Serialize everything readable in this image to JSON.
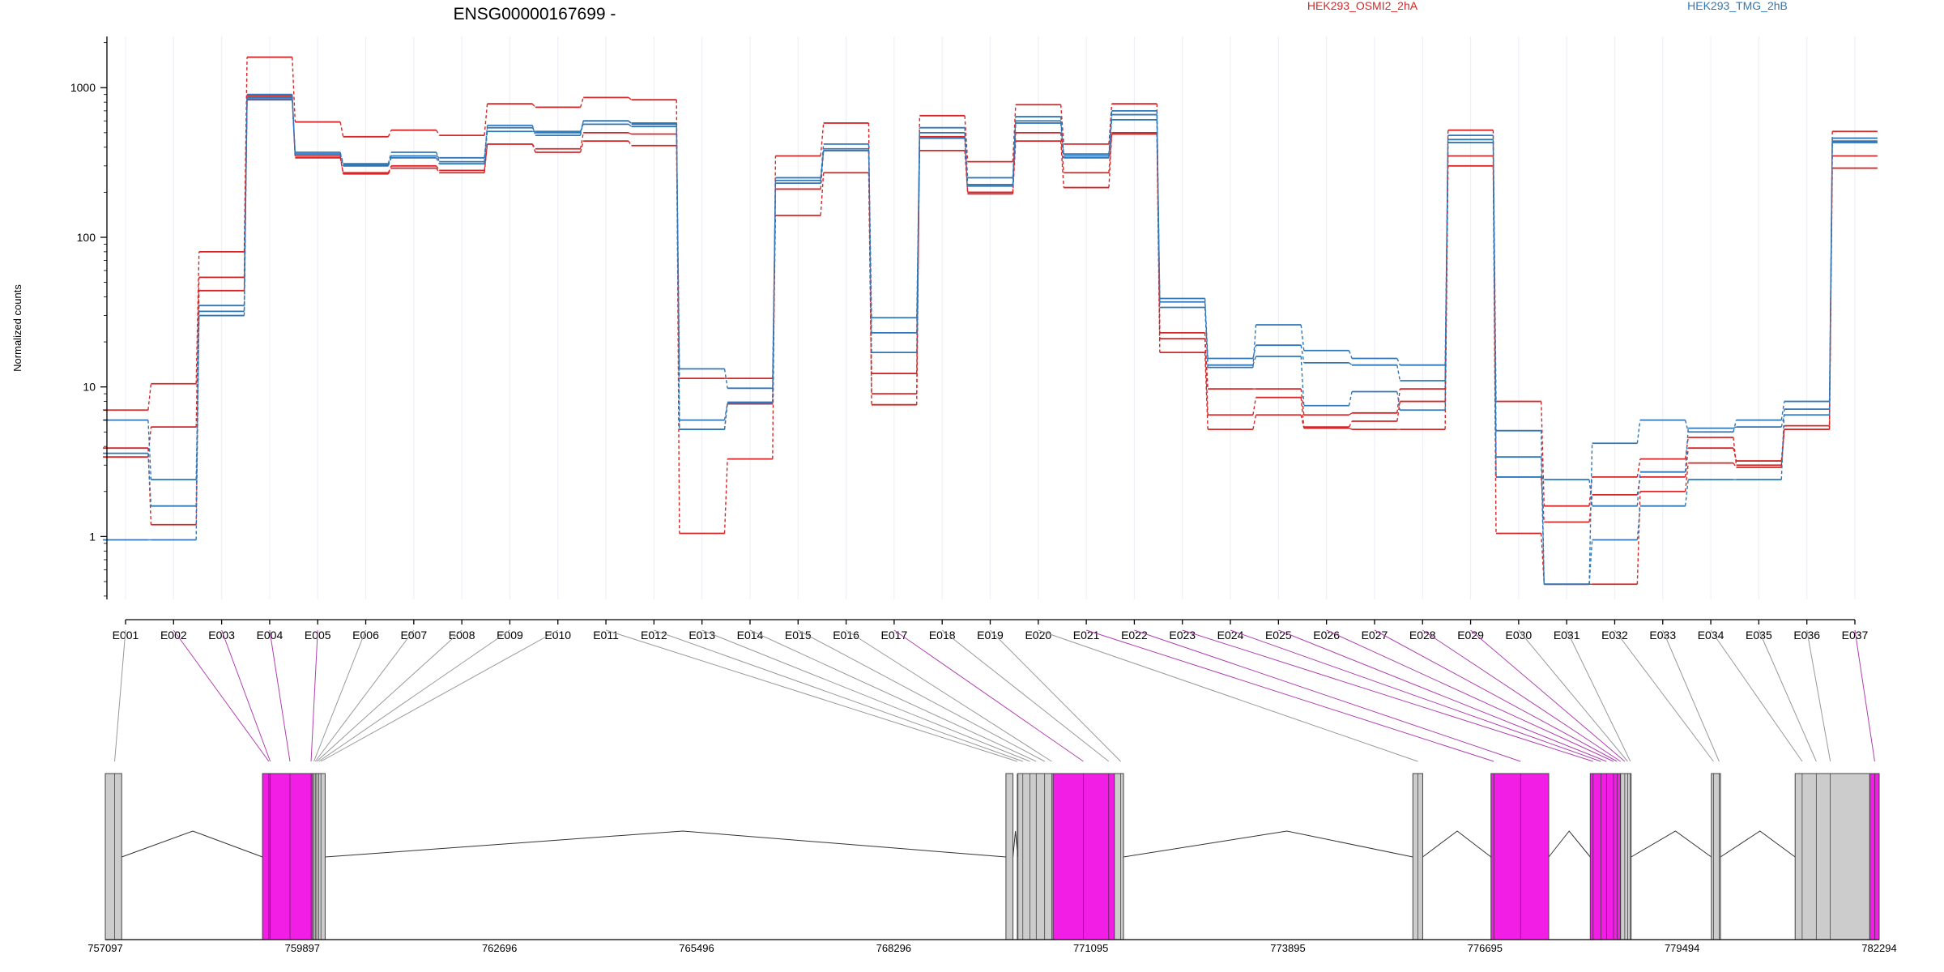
{
  "chart_data": {
    "type": "line",
    "title": "ENSG00000167699 -",
    "ylabel": "Normalized counts",
    "yscale": "log",
    "ylim": [
      0.38,
      2200
    ],
    "yticks": [
      1,
      10,
      100,
      1000
    ],
    "ytick_labels": [
      "1",
      "10",
      "100",
      "1000"
    ],
    "legend": [
      {
        "name": "HEK293_OSMI2_2hA",
        "color": "#d62728"
      },
      {
        "name": "HEK293_TMG_2hB",
        "color": "#2f77b7"
      }
    ],
    "categories": [
      "E001",
      "E002",
      "E003",
      "E004",
      "E005",
      "E006",
      "E007",
      "E008",
      "E009",
      "E010",
      "E011",
      "E012",
      "E013",
      "E014",
      "E015",
      "E016",
      "E017",
      "E018",
      "E019",
      "E020",
      "E021",
      "E022",
      "E023",
      "E024",
      "E025",
      "E026",
      "E027",
      "E028",
      "E029",
      "E030",
      "E031",
      "E032",
      "E033",
      "E034",
      "E035",
      "E036",
      "E037"
    ],
    "series": [
      {
        "group": "HEK293_OSMI2_2hA",
        "color": "#d62728",
        "values": [
          7.0,
          10.5,
          80,
          1600,
          590,
          470,
          520,
          480,
          780,
          740,
          860,
          830,
          1.05,
          3.3,
          350,
          580,
          7.6,
          650,
          320,
          770,
          420,
          780,
          23,
          9.7,
          9.7,
          6.5,
          6.7,
          9.7,
          520,
          8.0,
          1.6,
          2.5,
          3.3,
          4.6,
          3.0,
          5.2,
          510
        ]
      },
      {
        "group": "HEK293_OSMI2_2hA",
        "color": "#d62728",
        "values": [
          3.4,
          5.4,
          54,
          880,
          340,
          270,
          300,
          280,
          420,
          390,
          500,
          490,
          11.4,
          11.4,
          210,
          380,
          12.3,
          380,
          200,
          500,
          270,
          500,
          21,
          6.5,
          8.5,
          5.4,
          5.9,
          8.0,
          350,
          2.5,
          1.25,
          1.9,
          2.5,
          3.9,
          3.2,
          5.5,
          350
        ]
      },
      {
        "group": "HEK293_OSMI2_2hA",
        "color": "#d62728",
        "values": [
          3.9,
          1.2,
          44,
          840,
          350,
          265,
          290,
          270,
          420,
          370,
          440,
          410,
          5.2,
          7.7,
          140,
          270,
          9.0,
          470,
          195,
          440,
          215,
          490,
          17,
          5.2,
          6.5,
          5.3,
          5.2,
          5.2,
          300,
          1.05,
          0.48,
          0.48,
          2.0,
          3.1,
          2.9,
          5.2,
          290
        ]
      },
      {
        "group": "HEK293_TMG_2hB",
        "color": "#2f77b7",
        "values": [
          6.0,
          2.4,
          30,
          830,
          370,
          310,
          370,
          320,
          560,
          480,
          600,
          570,
          5.2,
          7.9,
          230,
          390,
          23,
          540,
          250,
          600,
          360,
          700,
          37,
          13.5,
          26,
          17.5,
          15.5,
          14,
          450,
          5.1,
          0.48,
          4.2,
          6.0,
          5.0,
          6.0,
          8.0,
          430
        ]
      },
      {
        "group": "HEK293_TMG_2hB",
        "color": "#2f77b7",
        "values": [
          0.95,
          0.95,
          32,
          860,
          360,
          300,
          340,
          310,
          510,
          510,
          570,
          550,
          13.2,
          9.8,
          250,
          420,
          29,
          460,
          220,
          640,
          340,
          610,
          39,
          15.5,
          19,
          14.5,
          14,
          11,
          480,
          3.4,
          0.48,
          0.95,
          1.6,
          2.4,
          2.4,
          7.1,
          460
        ]
      },
      {
        "group": "HEK293_TMG_2hB",
        "color": "#2f77b7",
        "values": [
          3.6,
          1.6,
          35,
          900,
          360,
          305,
          350,
          340,
          540,
          500,
          600,
          580,
          6.0,
          7.8,
          240,
          380,
          17,
          500,
          225,
          580,
          350,
          660,
          34,
          14,
          16,
          7.5,
          9.3,
          7.0,
          430,
          2.5,
          2.4,
          1.6,
          2.7,
          5.3,
          5.4,
          6.5,
          440
        ]
      }
    ],
    "gene_model": {
      "coord_ticks": [
        "757097",
        "759897",
        "762696",
        "765496",
        "768296",
        "771095",
        "773895",
        "776695",
        "779494",
        "782294"
      ],
      "coord_range": [
        757097,
        782294
      ],
      "exons": [
        {
          "start": 757097,
          "end": 757330,
          "color": "#cccccc"
        },
        {
          "start": 759330,
          "end": 760040,
          "color": "#f21ee6"
        },
        {
          "start": 760040,
          "end": 760220,
          "color": "#cccccc"
        },
        {
          "start": 769890,
          "end": 769990,
          "color": "#cccccc"
        },
        {
          "start": 770060,
          "end": 770560,
          "color": "#cccccc"
        },
        {
          "start": 770560,
          "end": 771430,
          "color": "#f21ee6"
        },
        {
          "start": 771430,
          "end": 771560,
          "color": "#cccccc"
        },
        {
          "start": 775670,
          "end": 775810,
          "color": "#cccccc"
        },
        {
          "start": 776780,
          "end": 777600,
          "color": "#f21ee6"
        },
        {
          "start": 778190,
          "end": 778620,
          "color": "#f21ee6"
        },
        {
          "start": 778620,
          "end": 778770,
          "color": "#cccccc"
        },
        {
          "start": 779910,
          "end": 780040,
          "color": "#cccccc"
        },
        {
          "start": 781100,
          "end": 782160,
          "color": "#cccccc"
        },
        {
          "start": 782160,
          "end": 782294,
          "color": "#f21ee6"
        }
      ],
      "exon_map": [
        {
          "coord": 757230,
          "color": "#999999"
        },
        {
          "coord": 759420,
          "color": "#b040b0"
        },
        {
          "coord": 759440,
          "color": "#b040b0"
        },
        {
          "coord": 759720,
          "color": "#b040b0"
        },
        {
          "coord": 760020,
          "color": "#b040b0"
        },
        {
          "coord": 760060,
          "color": "#999999"
        },
        {
          "coord": 760080,
          "color": "#999999"
        },
        {
          "coord": 760100,
          "color": "#999999"
        },
        {
          "coord": 760130,
          "color": "#999999"
        },
        {
          "coord": 760160,
          "color": "#999999"
        },
        {
          "coord": 770050,
          "color": "#999999"
        },
        {
          "coord": 770130,
          "color": "#999999"
        },
        {
          "coord": 770230,
          "color": "#999999"
        },
        {
          "coord": 770320,
          "color": "#999999"
        },
        {
          "coord": 770440,
          "color": "#999999"
        },
        {
          "coord": 770540,
          "color": "#999999"
        },
        {
          "coord": 770990,
          "color": "#b040b0"
        },
        {
          "coord": 771350,
          "color": "#999999"
        },
        {
          "coord": 771520,
          "color": "#999999"
        },
        {
          "coord": 775740,
          "color": "#999999"
        },
        {
          "coord": 776820,
          "color": "#b040b0"
        },
        {
          "coord": 777200,
          "color": "#b040b0"
        },
        {
          "coord": 778230,
          "color": "#b040b0"
        },
        {
          "coord": 778340,
          "color": "#b040b0"
        },
        {
          "coord": 778420,
          "color": "#b040b0"
        },
        {
          "coord": 778520,
          "color": "#b040b0"
        },
        {
          "coord": 778570,
          "color": "#b040b0"
        },
        {
          "coord": 778620,
          "color": "#b040b0"
        },
        {
          "coord": 778680,
          "color": "#b040b0"
        },
        {
          "coord": 778720,
          "color": "#999999"
        },
        {
          "coord": 778760,
          "color": "#999999"
        },
        {
          "coord": 779940,
          "color": "#999999"
        },
        {
          "coord": 780020,
          "color": "#999999"
        },
        {
          "coord": 781200,
          "color": "#999999"
        },
        {
          "coord": 781400,
          "color": "#999999"
        },
        {
          "coord": 781600,
          "color": "#999999"
        },
        {
          "coord": 782230,
          "color": "#b040b0"
        }
      ],
      "introns": [
        {
          "from": 757330,
          "to": 759330,
          "peak": 758340
        },
        {
          "from": 760220,
          "to": 769890,
          "peak": 765300
        },
        {
          "from": 769990,
          "to": 770060,
          "peak": 770025
        },
        {
          "from": 771560,
          "to": 775670,
          "peak": 773880
        },
        {
          "from": 775810,
          "to": 776780,
          "peak": 776300
        },
        {
          "from": 777600,
          "to": 778190,
          "peak": 777890
        },
        {
          "from": 778770,
          "to": 779910,
          "peak": 779400
        },
        {
          "from": 780040,
          "to": 781100,
          "peak": 780600
        }
      ]
    }
  }
}
